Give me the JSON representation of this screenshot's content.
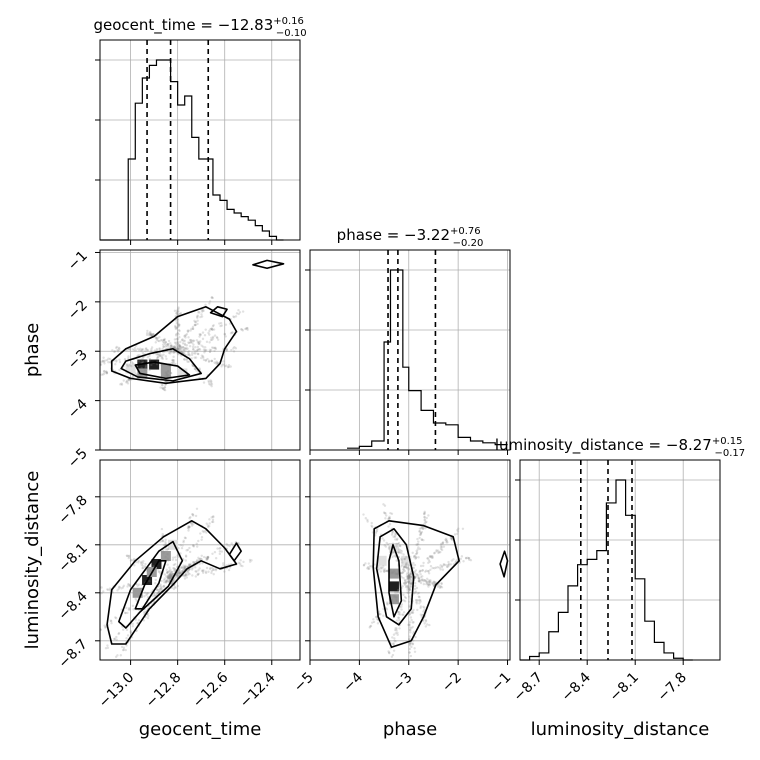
{
  "chart_data": {
    "type": "corner",
    "parameters": [
      "geocent_time",
      "phase",
      "luminosity_distance"
    ],
    "titles": [
      {
        "parameter": "geocent_time",
        "prefix": "geocent_time = ",
        "median": "−12.83",
        "plus": "+0.16",
        "minus": "−0.10"
      },
      {
        "parameter": "phase",
        "prefix": "phase = ",
        "median": "−3.22",
        "plus": "+0.76",
        "minus": "−0.20"
      },
      {
        "parameter": "luminosity_distance",
        "prefix": "luminosity_distance = ",
        "median": "−8.27",
        "plus": "+0.15",
        "minus": "−0.17"
      }
    ],
    "xlabels": [
      "geocent_time",
      "phase",
      "luminosity_distance"
    ],
    "ylabels": [
      "phase",
      "luminosity_distance"
    ],
    "ranges": {
      "geocent_time": [
        -13.13,
        -12.28
      ],
      "phase": [
        -5.0,
        -0.95
      ],
      "luminosity_distance": [
        -8.82,
        -7.57
      ]
    },
    "ticks": {
      "geocent_time": [
        -13.0,
        -12.8,
        -12.6,
        -12.4
      ],
      "phase": [
        -5,
        -4,
        -3,
        -2,
        -1
      ],
      "luminosity_distance": [
        -8.7,
        -8.4,
        -8.1,
        -7.8
      ]
    },
    "tick_labels": {
      "geocent_time": [
        "−13.0",
        "−12.8",
        "−12.6",
        "−12.4"
      ],
      "phase": [
        "−5",
        "−4",
        "−3",
        "−2",
        "−1"
      ],
      "luminosity_distance": [
        "−8.7",
        "−8.4",
        "−8.1",
        "−7.8"
      ]
    },
    "quantiles": {
      "geocent_time": [
        -12.93,
        -12.83,
        -12.67
      ],
      "phase": [
        -3.42,
        -3.22,
        -2.46
      ],
      "luminosity_distance": [
        -8.44,
        -8.27,
        -8.12
      ]
    },
    "histograms": {
      "geocent_time": {
        "edges": [
          -13.13,
          -13.1,
          -13.07,
          -13.04,
          -13.01,
          -12.98,
          -12.95,
          -12.92,
          -12.89,
          -12.86,
          -12.83,
          -12.8,
          -12.77,
          -12.74,
          -12.71,
          -12.68,
          -12.65,
          -12.62,
          -12.59,
          -12.56,
          -12.53,
          -12.5,
          -12.47,
          -12.44,
          -12.41,
          -12.38,
          -12.35
        ],
        "counts": [
          0,
          0,
          0,
          0,
          45,
          76,
          90,
          97,
          100,
          100,
          88,
          75,
          80,
          57,
          45,
          45,
          25,
          22,
          17,
          15,
          13,
          11,
          8,
          5,
          2,
          0
        ]
      },
      "phase": {
        "edges": [
          -4.25,
          -4.0,
          -3.75,
          -3.5,
          -3.37,
          -3.25,
          -3.12,
          -3.0,
          -2.75,
          -2.5,
          -2.25,
          -2.0,
          -1.75,
          -1.5,
          -1.25,
          -1.0
        ],
        "counts": [
          1,
          2,
          5,
          60,
          100,
          100,
          46,
          33,
          22,
          15,
          14,
          7,
          5,
          4,
          3
        ],
        "tail_counts": [
          1,
          0
        ]
      },
      "luminosity_distance": {
        "edges": [
          -8.82,
          -8.76,
          -8.7,
          -8.64,
          -8.58,
          -8.52,
          -8.46,
          -8.4,
          -8.34,
          -8.28,
          -8.22,
          -8.16,
          -8.1,
          -8.04,
          -7.98,
          -7.92,
          -7.86,
          -7.8,
          -7.74
        ],
        "counts": [
          0,
          2,
          4,
          16,
          27,
          42,
          54,
          57,
          62,
          89,
          102,
          82,
          46,
          22,
          10,
          4,
          1,
          0
        ]
      }
    },
    "density_cells": {
      "geocent_time_phase": [
        {
          "x": -12.95,
          "y": -3.27,
          "w": 3
        },
        {
          "x": -12.9,
          "y": -3.27,
          "w": 3
        },
        {
          "x": -12.85,
          "y": -3.35,
          "w": 2
        },
        {
          "x": -12.95,
          "y": -3.45,
          "w": 2
        },
        {
          "x": -12.85,
          "y": -3.45,
          "w": 2
        },
        {
          "x": -12.78,
          "y": -3.45,
          "w": 1
        },
        {
          "x": -13.0,
          "y": -3.35,
          "w": 1
        }
      ],
      "geocent_time_luminosity_distance": [
        {
          "x": -12.89,
          "y": -8.22,
          "w": 3
        },
        {
          "x": -12.93,
          "y": -8.32,
          "w": 3
        },
        {
          "x": -12.85,
          "y": -8.17,
          "w": 2
        },
        {
          "x": -12.97,
          "y": -8.4,
          "w": 2
        },
        {
          "x": -12.91,
          "y": -8.27,
          "w": 2
        },
        {
          "x": -12.82,
          "y": -8.1,
          "w": 1
        }
      ],
      "phase_luminosity_distance": [
        {
          "x": -3.3,
          "y": -8.36,
          "w": 3
        },
        {
          "x": -3.3,
          "y": -8.28,
          "w": 2
        },
        {
          "x": -3.3,
          "y": -8.44,
          "w": 2
        },
        {
          "x": -3.55,
          "y": -8.2,
          "w": 1
        },
        {
          "x": -3.05,
          "y": -8.2,
          "w": 1
        },
        {
          "x": -3.3,
          "y": -8.12,
          "w": 1
        }
      ]
    },
    "contours": {
      "geocent_time_phase": [
        [
          [
            -13.08,
            -3.2
          ],
          [
            -13.02,
            -2.95
          ],
          [
            -12.9,
            -2.7
          ],
          [
            -12.8,
            -2.3
          ],
          [
            -12.68,
            -2.1
          ],
          [
            -12.58,
            -2.35
          ],
          [
            -12.55,
            -2.6
          ],
          [
            -12.6,
            -2.95
          ],
          [
            -12.62,
            -3.25
          ],
          [
            -12.68,
            -3.55
          ],
          [
            -12.85,
            -3.65
          ],
          [
            -13.0,
            -3.55
          ],
          [
            -13.08,
            -3.4
          ]
        ],
        [
          [
            -13.02,
            -3.2
          ],
          [
            -12.92,
            -3.05
          ],
          [
            -12.82,
            -2.95
          ],
          [
            -12.75,
            -3.15
          ],
          [
            -12.7,
            -3.45
          ],
          [
            -12.82,
            -3.6
          ],
          [
            -12.97,
            -3.52
          ],
          [
            -13.04,
            -3.35
          ]
        ],
        [
          [
            -12.98,
            -3.28
          ],
          [
            -12.9,
            -3.22
          ],
          [
            -12.8,
            -3.3
          ],
          [
            -12.75,
            -3.48
          ],
          [
            -12.85,
            -3.55
          ],
          [
            -12.96,
            -3.45
          ]
        ],
        [
          [
            -12.63,
            -2.1
          ],
          [
            -12.59,
            -2.15
          ],
          [
            -12.61,
            -2.3
          ],
          [
            -12.66,
            -2.22
          ]
        ],
        [
          [
            -12.48,
            -1.25
          ],
          [
            -12.42,
            -1.16
          ],
          [
            -12.35,
            -1.23
          ],
          [
            -12.42,
            -1.32
          ]
        ]
      ],
      "geocent_time_luminosity_distance": [
        [
          [
            -13.1,
            -8.6
          ],
          [
            -13.08,
            -8.38
          ],
          [
            -12.98,
            -8.2
          ],
          [
            -12.86,
            -8.05
          ],
          [
            -12.74,
            -7.95
          ],
          [
            -12.68,
            -8.0
          ],
          [
            -12.6,
            -8.12
          ],
          [
            -12.55,
            -8.22
          ],
          [
            -12.62,
            -8.25
          ],
          [
            -12.7,
            -8.2
          ],
          [
            -12.76,
            -8.25
          ],
          [
            -12.82,
            -8.35
          ],
          [
            -12.92,
            -8.5
          ],
          [
            -13.02,
            -8.72
          ],
          [
            -13.08,
            -8.72
          ]
        ],
        [
          [
            -13.05,
            -8.58
          ],
          [
            -13.0,
            -8.38
          ],
          [
            -12.88,
            -8.14
          ],
          [
            -12.82,
            -8.08
          ],
          [
            -12.78,
            -8.2
          ],
          [
            -12.84,
            -8.36
          ],
          [
            -12.96,
            -8.52
          ],
          [
            -13.02,
            -8.62
          ]
        ],
        [
          [
            -12.98,
            -8.5
          ],
          [
            -12.94,
            -8.35
          ],
          [
            -12.88,
            -8.2
          ],
          [
            -12.85,
            -8.2
          ],
          [
            -12.88,
            -8.34
          ],
          [
            -12.95,
            -8.5
          ]
        ],
        [
          [
            -12.58,
            -8.16
          ],
          [
            -12.55,
            -8.09
          ],
          [
            -12.53,
            -8.14
          ],
          [
            -12.56,
            -8.2
          ]
        ]
      ],
      "phase_luminosity_distance": [
        [
          [
            -3.72,
            -8.24
          ],
          [
            -3.7,
            -8.0
          ],
          [
            -3.4,
            -7.95
          ],
          [
            -2.7,
            -7.98
          ],
          [
            -2.1,
            -8.05
          ],
          [
            -1.98,
            -8.2
          ],
          [
            -2.45,
            -8.35
          ],
          [
            -2.7,
            -8.55
          ],
          [
            -2.95,
            -8.7
          ],
          [
            -3.35,
            -8.74
          ],
          [
            -3.62,
            -8.55
          ]
        ],
        [
          [
            -3.65,
            -8.25
          ],
          [
            -3.58,
            -8.05
          ],
          [
            -3.3,
            -8.0
          ],
          [
            -3.05,
            -8.1
          ],
          [
            -2.9,
            -8.3
          ],
          [
            -2.95,
            -8.5
          ],
          [
            -3.2,
            -8.6
          ],
          [
            -3.45,
            -8.55
          ]
        ],
        [
          [
            -3.4,
            -8.2
          ],
          [
            -3.32,
            -8.1
          ],
          [
            -3.2,
            -8.2
          ],
          [
            -3.15,
            -8.45
          ],
          [
            -3.3,
            -8.55
          ],
          [
            -3.4,
            -8.4
          ]
        ],
        [
          [
            -1.15,
            -8.22
          ],
          [
            -1.06,
            -8.14
          ],
          [
            -1.0,
            -8.2
          ],
          [
            -1.07,
            -8.3
          ]
        ]
      ]
    },
    "grid": true,
    "colors": {
      "line": "#000000",
      "scatter": "#888888",
      "grid": "#b0b0b0"
    }
  }
}
